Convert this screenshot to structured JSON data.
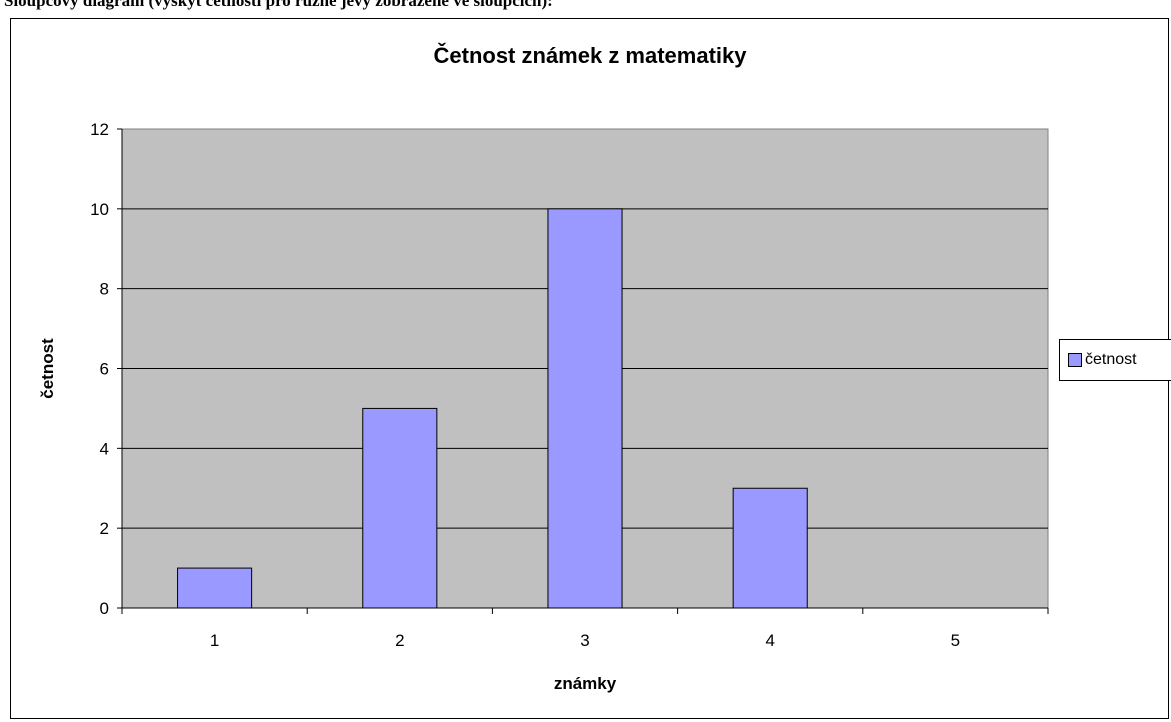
{
  "page": {
    "top_text": "Sloupcový diagram (výskyt četností pro různé jevy zobrazené ve sloupcích):"
  },
  "chart_data": {
    "type": "bar",
    "title": "Četnost známek z matematiky",
    "xlabel": "známky",
    "ylabel": "četnost",
    "categories": [
      "1",
      "2",
      "3",
      "4",
      "5"
    ],
    "series": [
      {
        "name": "četnost",
        "values": [
          1,
          5,
          10,
          3,
          0
        ]
      }
    ],
    "ylim": [
      0,
      12
    ],
    "yticks": [
      0,
      2,
      4,
      6,
      8,
      10,
      12
    ],
    "grid": true,
    "legend": "right",
    "colors": {
      "bar": "#9999ff",
      "plot_background": "#c0c0c0",
      "gridline": "#000000"
    }
  }
}
